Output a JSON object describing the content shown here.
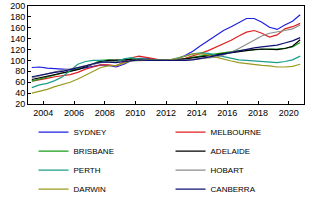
{
  "chart_data": {
    "type": "line",
    "x": [
      2003.25,
      2003.75,
      2004.25,
      2004.75,
      2005.25,
      2005.75,
      2006.25,
      2006.75,
      2007.25,
      2007.75,
      2008.25,
      2008.75,
      2009.25,
      2009.75,
      2010.25,
      2010.75,
      2011.25,
      2011.75,
      2012.25,
      2012.75,
      2013.25,
      2013.75,
      2014.25,
      2014.75,
      2015.25,
      2015.75,
      2016.25,
      2016.75,
      2017.25,
      2017.75,
      2018.25,
      2018.75,
      2019.25,
      2019.75,
      2020.25,
      2020.75
    ],
    "series": [
      {
        "name": "SYDNEY",
        "color": "#1f1fe0",
        "values": [
          87,
          88,
          86,
          85,
          84,
          83,
          84,
          86,
          89,
          92,
          91,
          88,
          93,
          100,
          104,
          104,
          102,
          100,
          100,
          103,
          109,
          117,
          127,
          136,
          146,
          155,
          162,
          170,
          177,
          177,
          170,
          161,
          157,
          165,
          172,
          184
        ]
      },
      {
        "name": "MELBOURNE",
        "color": "#e02020",
        "values": [
          62,
          64,
          67,
          70,
          72,
          74,
          78,
          84,
          88,
          92,
          92,
          90,
          97,
          105,
          108,
          106,
          103,
          100,
          100,
          101,
          104,
          108,
          113,
          118,
          124,
          130,
          137,
          145,
          152,
          155,
          150,
          143,
          147,
          158,
          162,
          168
        ]
      },
      {
        "name": "BRISBANE",
        "color": "#1a9e1a",
        "values": [
          62,
          66,
          70,
          74,
          77,
          80,
          84,
          89,
          94,
          100,
          101,
          100,
          101,
          103,
          103,
          102,
          100,
          100,
          100,
          101,
          103,
          106,
          108,
          110,
          113,
          115,
          117,
          118,
          119,
          120,
          121,
          121,
          121,
          122,
          125,
          133
        ]
      },
      {
        "name": "ADELAIDE",
        "color": "#000000",
        "values": [
          65,
          68,
          71,
          74,
          76,
          79,
          83,
          88,
          93,
          98,
          100,
          100,
          101,
          102,
          102,
          101,
          100,
          100,
          100,
          101,
          103,
          105,
          107,
          109,
          111,
          113,
          115,
          117,
          119,
          120,
          121,
          121,
          120,
          122,
          126,
          138
        ]
      },
      {
        "name": "PERTH",
        "color": "#1a9e8a",
        "values": [
          50,
          55,
          58,
          63,
          70,
          82,
          93,
          98,
          100,
          100,
          97,
          97,
          103,
          105,
          102,
          101,
          100,
          100,
          101,
          104,
          108,
          112,
          114,
          113,
          110,
          106,
          103,
          101,
          100,
          99,
          98,
          97,
          96,
          98,
          101,
          108
        ]
      },
      {
        "name": "HOBART",
        "color": "#8c8c8c",
        "values": [
          68,
          72,
          76,
          79,
          82,
          84,
          87,
          90,
          93,
          96,
          97,
          97,
          98,
          99,
          100,
          100,
          100,
          100,
          100,
          100,
          101,
          102,
          103,
          104,
          106,
          110,
          115,
          122,
          130,
          138,
          145,
          150,
          152,
          155,
          158,
          165
        ]
      },
      {
        "name": "DARWIN",
        "color": "#9a9a20",
        "values": [
          40,
          43,
          47,
          52,
          56,
          60,
          66,
          73,
          80,
          87,
          90,
          91,
          95,
          100,
          101,
          100,
          100,
          100,
          101,
          104,
          108,
          112,
          112,
          110,
          106,
          102,
          99,
          96,
          94,
          92,
          91,
          90,
          88,
          88,
          89,
          93
        ]
      },
      {
        "name": "CANBERRA",
        "color": "#101070",
        "values": [
          70,
          73,
          76,
          78,
          80,
          83,
          86,
          90,
          94,
          97,
          97,
          96,
          98,
          100,
          101,
          100,
          100,
          100,
          99,
          99,
          100,
          101,
          103,
          106,
          109,
          112,
          115,
          118,
          121,
          123,
          125,
          126,
          128,
          132,
          136,
          142
        ]
      }
    ],
    "xlim": [
      2003,
      2021
    ],
    "xticks": [
      2004,
      2006,
      2008,
      2010,
      2012,
      2014,
      2016,
      2018,
      2020
    ],
    "ylim": [
      20,
      200
    ],
    "yticks": [
      20,
      40,
      60,
      80,
      100,
      120,
      140,
      160,
      180,
      200
    ],
    "grid": false,
    "legend": "bottom"
  }
}
